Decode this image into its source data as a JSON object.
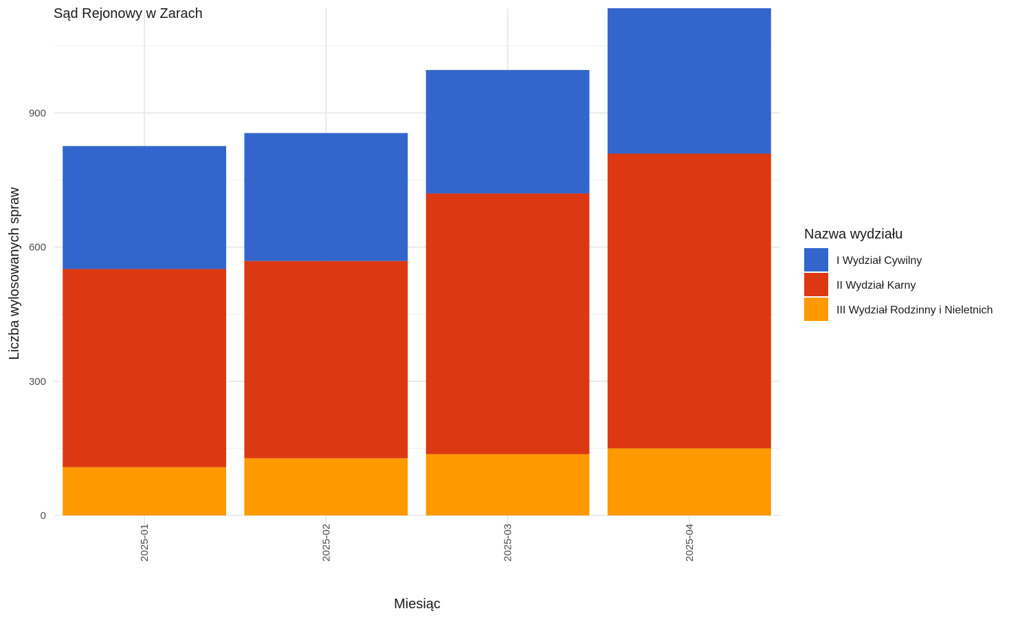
{
  "chart_data": {
    "type": "bar",
    "stacked": true,
    "title": "Sąd Rejonowy w Zarach",
    "xlabel": "Miesiąc",
    "ylabel": "Liczba wylosowanych spraw",
    "categories": [
      "2025-01",
      "2025-02",
      "2025-03",
      "2025-04"
    ],
    "series": [
      {
        "name": "III Wydział Rodzinny i Nieletnich",
        "color": "#FF9900",
        "values": [
          108,
          128,
          137,
          150
        ]
      },
      {
        "name": "II Wydział Karny",
        "color": "#DC3912",
        "values": [
          443,
          441,
          583,
          659
        ]
      },
      {
        "name": "I Wydział Cywilny",
        "color": "#3366CC",
        "values": [
          275,
          286,
          276,
          325
        ]
      }
    ],
    "ylim": [
      0,
      1134
    ],
    "yticks": [
      "0",
      "300",
      "600",
      "900"
    ],
    "grid": true,
    "legend": {
      "title": "Nazwa wydziału",
      "position": "right",
      "items": [
        "I Wydział Cywilny",
        "II Wydział Karny",
        "III Wydział Rodzinny i Nieletnich"
      ]
    }
  }
}
